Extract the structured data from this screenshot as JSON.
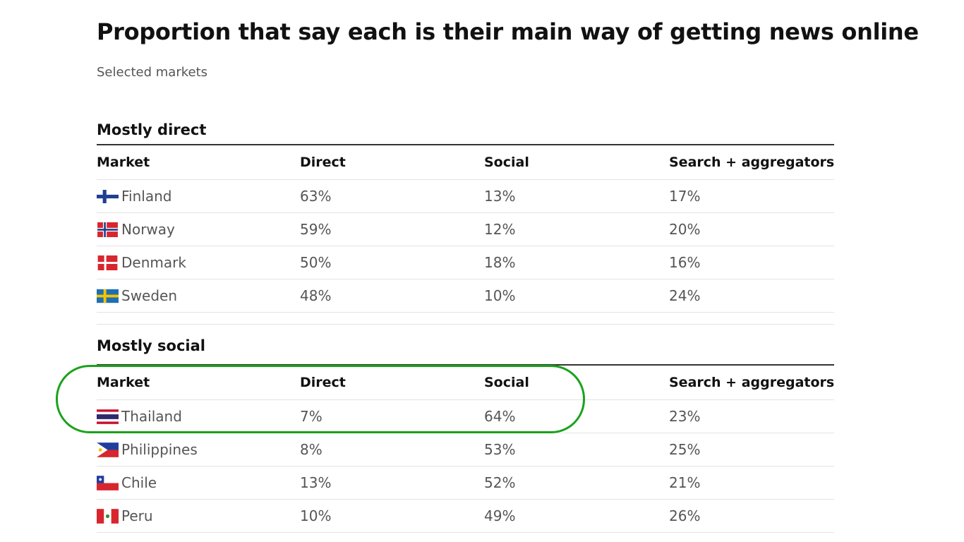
{
  "title": "Proportion that say each is their main way of getting news online",
  "subtitle": "Selected markets",
  "columns": [
    "Market",
    "Direct",
    "Social",
    "Search + aggregators"
  ],
  "highlight_color": "#1aa21a",
  "chart_data": {
    "type": "table",
    "title": "Proportion that say each is their main way of getting news online",
    "subtitle": "Selected markets",
    "groups": [
      {
        "name": "Mostly direct",
        "columns": [
          "Market",
          "Direct",
          "Social",
          "Search + aggregators"
        ],
        "rows": [
          {
            "market": "Finland",
            "flag": "finland-flag",
            "direct": "63%",
            "social": "13%",
            "search": "17%"
          },
          {
            "market": "Norway",
            "flag": "norway-flag",
            "direct": "59%",
            "social": "12%",
            "search": "20%"
          },
          {
            "market": "Denmark",
            "flag": "denmark-flag",
            "direct": "50%",
            "social": "18%",
            "search": "16%"
          },
          {
            "market": "Sweden",
            "flag": "sweden-flag",
            "direct": "48%",
            "social": "10%",
            "search": "24%"
          }
        ]
      },
      {
        "name": "Mostly social",
        "columns": [
          "Market",
          "Direct",
          "Social",
          "Search + aggregators"
        ],
        "rows": [
          {
            "market": "Thailand",
            "flag": "thailand-flag",
            "direct": "7%",
            "social": "64%",
            "search": "23%"
          },
          {
            "market": "Philippines",
            "flag": "philippines-flag",
            "direct": "8%",
            "social": "53%",
            "search": "25%"
          },
          {
            "market": "Chile",
            "flag": "chile-flag",
            "direct": "13%",
            "social": "52%",
            "search": "21%"
          },
          {
            "market": "Peru",
            "flag": "peru-flag",
            "direct": "10%",
            "social": "49%",
            "search": "26%"
          }
        ]
      }
    ]
  }
}
